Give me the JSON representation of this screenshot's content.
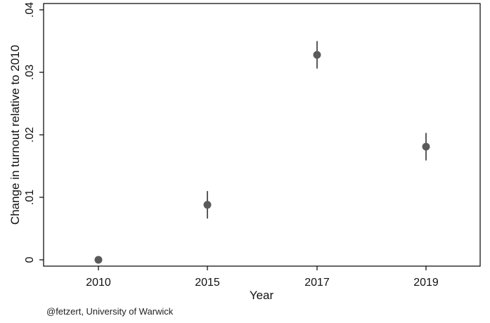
{
  "chart_data": {
    "type": "scatter",
    "title": "",
    "xlabel": "Year",
    "ylabel": "Change in turnout relative to 2010",
    "categories": [
      "2010",
      "2015",
      "2017",
      "2019"
    ],
    "yticks": [
      "0",
      ".01",
      ".02",
      ".03",
      ".04"
    ],
    "ylim": [
      0,
      0.04
    ],
    "grid": false,
    "series": [
      {
        "values": [
          0.0,
          0.0088,
          0.0328,
          0.0181
        ],
        "ci_low": [
          0.0,
          0.0066,
          0.0306,
          0.0159
        ],
        "ci_high": [
          0.0,
          0.011,
          0.035,
          0.0203
        ]
      }
    ],
    "colors": {
      "marker": "#5a5a5a",
      "axis": "#000000"
    }
  },
  "source_note": "@fetzert, University of Warwick"
}
